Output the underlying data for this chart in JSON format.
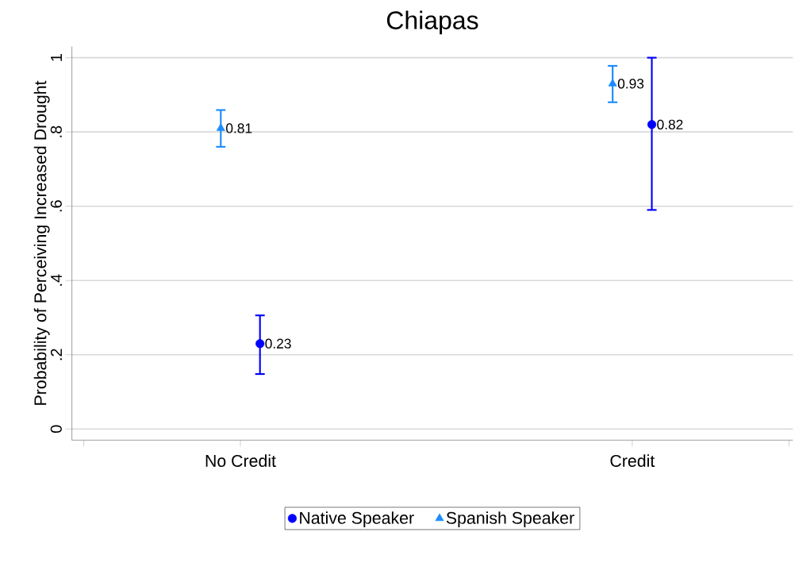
{
  "chart_data": {
    "type": "scatter",
    "title": "Chiapas",
    "ylabel": "Probability of Perceiving Increased Drought",
    "categories": [
      "No Credit",
      "Credit"
    ],
    "ylim": [
      -0.03,
      1.03
    ],
    "yticks": [
      0,
      {
        "value": 0.2,
        "label": ".2"
      },
      {
        "value": 0.4,
        "label": ".4"
      },
      {
        "value": 0.6,
        "label": ".6"
      },
      {
        "value": 0.8,
        "label": ".8"
      },
      1
    ],
    "series": [
      {
        "name": "Native Speaker",
        "color": "#0000ff",
        "marker": "circle",
        "values": [
          0.23,
          0.82
        ],
        "errors": [
          [
            0.148,
            0.306
          ],
          [
            0.59,
            1.0
          ]
        ]
      },
      {
        "name": "Spanish Speaker",
        "color": "#1a8cff",
        "marker": "triangle",
        "values": [
          0.81,
          0.93
        ],
        "errors": [
          [
            0.76,
            0.859
          ],
          [
            0.88,
            0.978
          ]
        ]
      }
    ],
    "data_labels": true,
    "grid": "y",
    "legend": "bottom"
  }
}
